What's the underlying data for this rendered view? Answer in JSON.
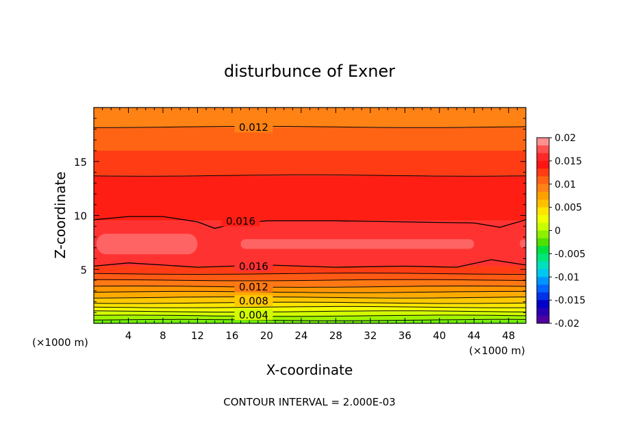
{
  "chart_data": {
    "type": "heatmap",
    "title": "disturbunce of Exner",
    "xlabel": "X-coordinate",
    "ylabel": "Z-coordinate",
    "x_unit_left": "(×1000 m)",
    "x_unit_right": "(×1000 m)",
    "footer": "CONTOUR INTERVAL = 2.000E-03",
    "xlim": [
      0,
      50
    ],
    "ylim": [
      0,
      20
    ],
    "x_ticks": [
      "4",
      "8",
      "12",
      "16",
      "20",
      "24",
      "28",
      "32",
      "36",
      "40",
      "44",
      "48"
    ],
    "x_tick_values": [
      4,
      8,
      12,
      16,
      20,
      24,
      28,
      32,
      36,
      40,
      44,
      48
    ],
    "y_ticks": [
      "5",
      "10",
      "15"
    ],
    "y_tick_values": [
      5,
      10,
      15
    ],
    "contour_interval": 0.002,
    "colorbar": {
      "labels": [
        "0.02",
        "0.015",
        "0.01",
        "0.005",
        "0",
        "-0.005",
        "-0.01",
        "-0.015",
        "-0.02"
      ],
      "levels": [
        0.02,
        0.015,
        0.01,
        0.005,
        0,
        -0.005,
        -0.01,
        -0.015,
        -0.02
      ],
      "colors": [
        "#ff9090",
        "#ff5050",
        "#ff2828",
        "#ff1414",
        "#ff3c14",
        "#ff6414",
        "#ff8214",
        "#ffa000",
        "#ffc000",
        "#ffe400",
        "#f0ff00",
        "#c8ff00",
        "#8cf000",
        "#50e000",
        "#00e040",
        "#00e678",
        "#00e0c0",
        "#00c8f0",
        "#0096ff",
        "#0064ff",
        "#0032e6",
        "#0000c8",
        "#2800b4",
        "#5000a0"
      ]
    },
    "contour_labels": [
      {
        "value": "0.012",
        "x": 18.5,
        "z": 18.2
      },
      {
        "value": "0.016",
        "x": 17.0,
        "z": 9.5
      },
      {
        "value": "0.016",
        "x": 18.5,
        "z": 5.3
      },
      {
        "value": "0.012",
        "x": 18.5,
        "z": 3.4
      },
      {
        "value": "0.008",
        "x": 18.5,
        "z": 2.1
      },
      {
        "value": "0.004",
        "x": 18.5,
        "z": 0.8
      }
    ],
    "bands": [
      {
        "z0": 0.0,
        "z1": 0.3,
        "color": "#6ef000"
      },
      {
        "z0": 0.3,
        "z1": 0.7,
        "color": "#a0f500"
      },
      {
        "z0": 0.7,
        "z1": 1.1,
        "color": "#d2fa00"
      },
      {
        "z0": 1.1,
        "z1": 1.5,
        "color": "#f0ff00"
      },
      {
        "z0": 1.5,
        "z1": 1.9,
        "color": "#ffe600"
      },
      {
        "z0": 1.9,
        "z1": 2.4,
        "color": "#ffc800"
      },
      {
        "z0": 2.4,
        "z1": 2.9,
        "color": "#ffaa00"
      },
      {
        "z0": 2.9,
        "z1": 3.4,
        "color": "#ff9600"
      },
      {
        "z0": 3.4,
        "z1": 4.0,
        "color": "#ff7814"
      },
      {
        "z0": 4.0,
        "z1": 4.6,
        "color": "#ff5a14"
      },
      {
        "z0": 4.6,
        "z1": 5.3,
        "color": "#ff3c14"
      },
      {
        "z0": 5.3,
        "z1": 9.5,
        "color": "#ff3232"
      },
      {
        "z0": 9.5,
        "z1": 13.7,
        "color": "#ff1e14"
      },
      {
        "z0": 13.7,
        "z1": 16.0,
        "color": "#ff3c14"
      },
      {
        "z0": 16.0,
        "z1": 18.2,
        "color": "#ff6414"
      },
      {
        "z0": 18.2,
        "z1": 20.0,
        "color": "#ff8214"
      }
    ],
    "highlight_color": "#ff6464",
    "highlights": [
      {
        "x0": 0.3,
        "x1": 12.0,
        "z0": 6.4,
        "z1": 8.3
      },
      {
        "x0": 17.0,
        "x1": 44.0,
        "z0": 6.9,
        "z1": 7.8
      },
      {
        "x0": 49.3,
        "x1": 50.0,
        "z0": 7.0,
        "z1": 7.8
      }
    ],
    "contours": [
      {
        "z": 0.3
      },
      {
        "z": 0.7
      },
      {
        "z": 1.1
      },
      {
        "z": 1.5
      },
      {
        "z": 1.9
      },
      {
        "z": 2.4
      },
      {
        "z": 2.9
      },
      {
        "z": 3.4
      },
      {
        "z": 4.0
      },
      {
        "z": 4.6
      },
      {
        "z": 13.7
      },
      {
        "z": 18.2
      }
    ],
    "contour_wavy_lower": [
      [
        0,
        5.3
      ],
      [
        4,
        5.6
      ],
      [
        8,
        5.4
      ],
      [
        12,
        5.2
      ],
      [
        16,
        5.3
      ],
      [
        20,
        5.4
      ],
      [
        28,
        5.2
      ],
      [
        36,
        5.3
      ],
      [
        42,
        5.2
      ],
      [
        46,
        5.9
      ],
      [
        50,
        5.4
      ]
    ],
    "contour_wavy_upper": [
      [
        0,
        9.6
      ],
      [
        4,
        9.9
      ],
      [
        8,
        9.9
      ],
      [
        12,
        9.4
      ],
      [
        14,
        8.8
      ],
      [
        16,
        9.2
      ],
      [
        20,
        9.5
      ],
      [
        28,
        9.5
      ],
      [
        36,
        9.4
      ],
      [
        44,
        9.3
      ],
      [
        47,
        8.9
      ],
      [
        50,
        9.6
      ]
    ]
  }
}
